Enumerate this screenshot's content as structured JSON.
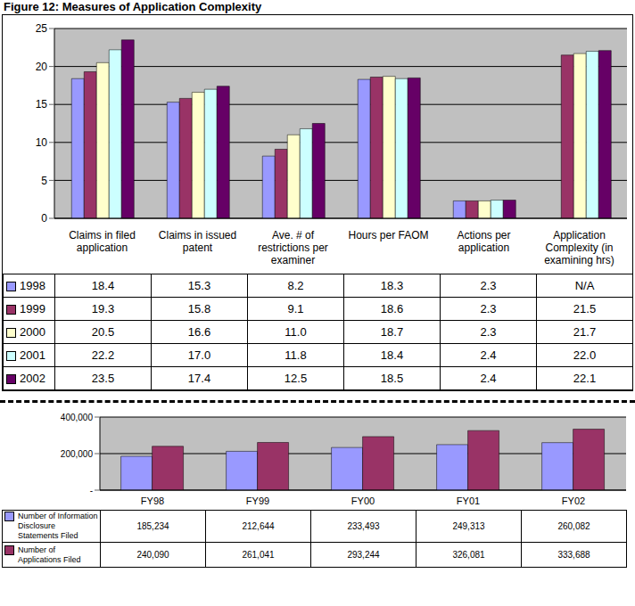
{
  "chart_data": [
    {
      "type": "bar",
      "title": "Figure 12:  Measures of Application Complexity",
      "categories": [
        "Claims in filed application",
        "Claims in issued patent",
        "Ave. # of restrictions per examiner",
        "Hours per FAOM",
        "Actions per application",
        "Application Complexity (in examining hrs)"
      ],
      "series": [
        {
          "name": "1998",
          "color": "#9999ff",
          "values": [
            18.4,
            15.3,
            8.2,
            18.3,
            2.3,
            null
          ],
          "value_labels": [
            "18.4",
            "15.3",
            "8.2",
            "18.3",
            "2.3",
            "N/A"
          ]
        },
        {
          "name": "1999",
          "color": "#993366",
          "values": [
            19.3,
            15.8,
            9.1,
            18.6,
            2.3,
            21.5
          ],
          "value_labels": [
            "19.3",
            "15.8",
            "9.1",
            "18.6",
            "2.3",
            "21.5"
          ]
        },
        {
          "name": "2000",
          "color": "#ffffcc",
          "values": [
            20.5,
            16.6,
            11.0,
            18.7,
            2.3,
            21.7
          ],
          "value_labels": [
            "20.5",
            "16.6",
            "11.0",
            "18.7",
            "2.3",
            "21.7"
          ]
        },
        {
          "name": "2001",
          "color": "#ccffff",
          "values": [
            22.2,
            17.0,
            11.8,
            18.4,
            2.4,
            22.0
          ],
          "value_labels": [
            "22.2",
            "17.0",
            "11.8",
            "18.4",
            "2.4",
            "22.0"
          ]
        },
        {
          "name": "2002",
          "color": "#660066",
          "values": [
            23.5,
            17.4,
            12.5,
            18.5,
            2.4,
            22.1
          ],
          "value_labels": [
            "23.5",
            "17.4",
            "12.5",
            "18.5",
            "2.4",
            "22.1"
          ]
        }
      ],
      "ylim": [
        0,
        25
      ],
      "yticks": [
        0,
        5,
        10,
        15,
        20,
        25
      ],
      "grid": true
    },
    {
      "type": "bar",
      "categories": [
        "FY98",
        "FY99",
        "FY00",
        "FY01",
        "FY02"
      ],
      "series": [
        {
          "name": "Number of Information Disclosure Statements Filed",
          "color": "#9999ff",
          "values": [
            185234,
            212644,
            233493,
            249313,
            260082
          ],
          "value_labels": [
            "185,234",
            "212,644",
            "233,493",
            "249,313",
            "260,082"
          ]
        },
        {
          "name": "Number of Applications Filed",
          "color": "#993366",
          "values": [
            240090,
            261041,
            293244,
            326081,
            333688
          ],
          "value_labels": [
            "240,090",
            "261,041",
            "293,244",
            "326,081",
            "333,688"
          ]
        }
      ],
      "ylim": [
        0,
        400000
      ],
      "yticks": [
        {
          "value": 0,
          "label": "-"
        },
        {
          "value": 200000,
          "label": "200,000"
        },
        {
          "value": 400000,
          "label": "400,000"
        }
      ],
      "grid": true
    }
  ]
}
